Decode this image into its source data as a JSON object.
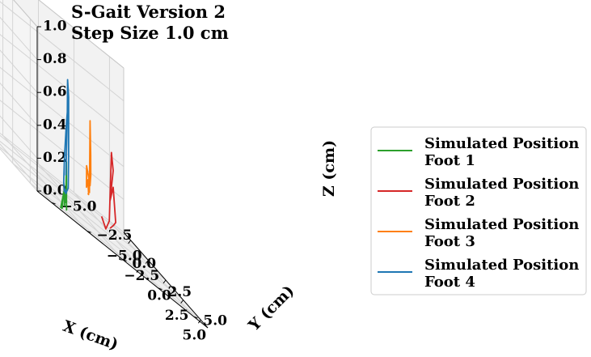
{
  "chart_data": {
    "type": "line3d",
    "title_lines": [
      "S-Gait Version 2",
      "Step Size 1.0 cm"
    ],
    "xlabel": "X (cm)",
    "ylabel": "Y (cm)",
    "zlabel": "Z (cm)",
    "xlim": [
      -6,
      6
    ],
    "ylim": [
      -6,
      6
    ],
    "zlim": [
      0,
      1
    ],
    "xticks": [
      "−5.0",
      "−2.5",
      "0.0",
      "2.5",
      "5.0"
    ],
    "yticks": [
      "−5.0",
      "−2.5",
      "0.0",
      "2.5",
      "5.0"
    ],
    "zticks": [
      "0.0",
      "0.2",
      "0.4",
      "0.6",
      "0.8",
      "1.0"
    ],
    "grid": true,
    "legend_position": "right",
    "series": [
      {
        "name_lines": [
          "Simulated Position",
          "Foot 1"
        ],
        "color": "#2ca02c",
        "points": [
          [
            4.3,
            -3.1,
            0.0
          ],
          [
            4.5,
            -3.2,
            0.3
          ],
          [
            4.6,
            -3.3,
            0.05
          ],
          [
            4.7,
            -3.5,
            0.1
          ],
          [
            4.75,
            -3.6,
            0.02
          ],
          [
            4.8,
            -3.65,
            0.0
          ],
          [
            4.9,
            -3.8,
            0.0
          ],
          [
            4.6,
            -3.4,
            0.12
          ],
          [
            4.55,
            -3.35,
            0.02
          ]
        ]
      },
      {
        "name_lines": [
          "Simulated Position",
          "Foot 2"
        ],
        "color": "#d62728",
        "points": [
          [
            1.8,
            0.6,
            0.1
          ],
          [
            2.2,
            0.7,
            0.05
          ],
          [
            2.5,
            0.8,
            0.12
          ],
          [
            2.7,
            0.85,
            0.55
          ],
          [
            2.85,
            0.9,
            0.45
          ],
          [
            2.7,
            0.75,
            0.25
          ],
          [
            2.95,
            0.85,
            0.35
          ],
          [
            3.1,
            0.95,
            0.15
          ],
          [
            2.9,
            0.9,
            0.12
          ],
          [
            2.6,
            0.8,
            0.08
          ]
        ]
      },
      {
        "name_lines": [
          "Simulated Position",
          "Foot 3"
        ],
        "color": "#ff7f0e",
        "points": [
          [
            -4.0,
            2.6,
            0.1
          ],
          [
            -3.5,
            2.4,
            0.55
          ],
          [
            -3.2,
            2.3,
            0.35
          ],
          [
            -3.6,
            2.5,
            0.22
          ],
          [
            -3.9,
            2.6,
            0.15
          ],
          [
            -4.2,
            2.5,
            0.25
          ],
          [
            -4.1,
            2.45,
            0.12
          ],
          [
            -3.6,
            2.3,
            0.18
          ],
          [
            -3.1,
            2.1,
            0.1
          ],
          [
            -3.4,
            2.2,
            0.1
          ]
        ]
      },
      {
        "name_lines": [
          "Simulated Position",
          "Foot 4"
        ],
        "color": "#1f77b4",
        "points": [
          [
            -3.5,
            0.7,
            0.1
          ],
          [
            -3.1,
            0.6,
            0.45
          ],
          [
            -2.85,
            0.5,
            0.7
          ],
          [
            -2.7,
            0.5,
            0.6
          ],
          [
            -2.5,
            0.4,
            0.25
          ],
          [
            -2.45,
            0.35,
            0.05
          ],
          [
            -2.7,
            0.3,
            0.0
          ],
          [
            -2.9,
            0.35,
            0.02
          ],
          [
            -3.1,
            0.4,
            0.0
          ],
          [
            -3.4,
            0.5,
            0.05
          ],
          [
            -3.5,
            0.6,
            0.2
          ],
          [
            -3.45,
            0.7,
            0.4
          ],
          [
            -3.3,
            0.75,
            0.55
          ]
        ]
      }
    ]
  }
}
